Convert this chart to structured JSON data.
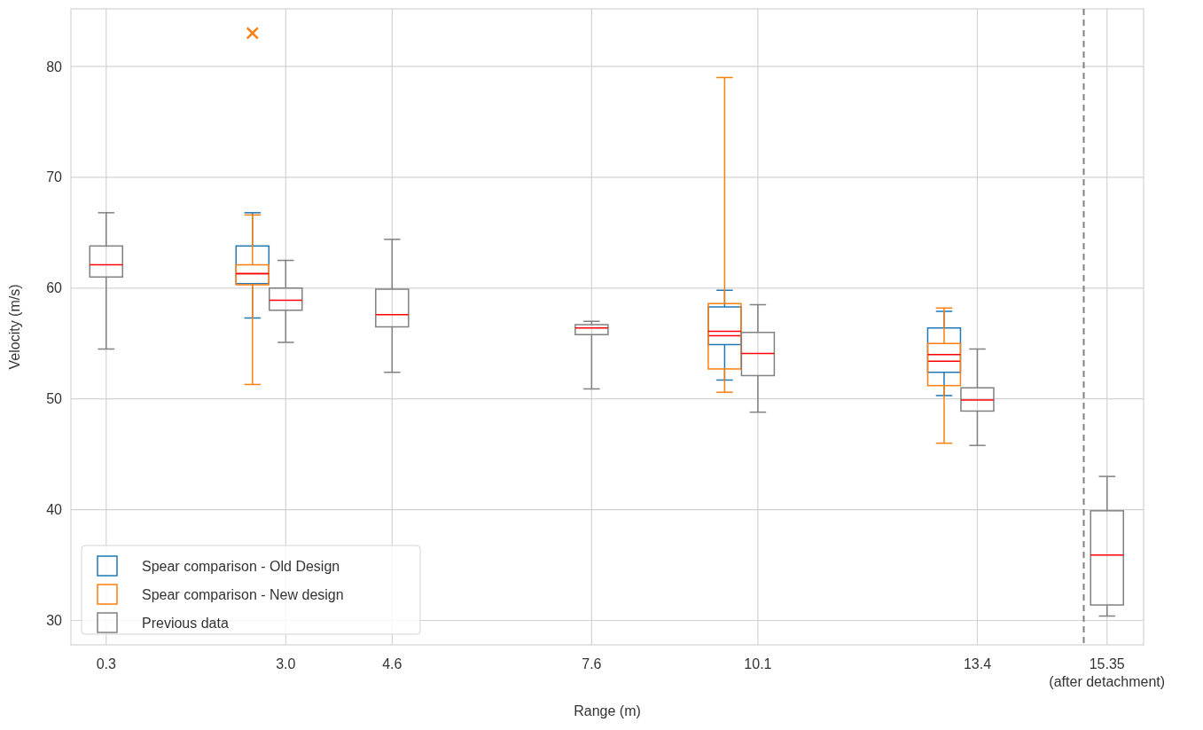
{
  "chart_data": {
    "type": "box",
    "xlabel": "Range (m)",
    "ylabel": "Velocity (m/s)",
    "xlim": [
      -0.23,
      15.9
    ],
    "ylim": [
      27.8,
      85.2
    ],
    "xticks": [
      0.3,
      {
        "value": 3.0,
        "label": "3.0"
      },
      4.6,
      7.6,
      10.1,
      13.4,
      {
        "value": 15.35,
        "label": "15.35\n(after detachment)"
      }
    ],
    "yticks": [
      30,
      40,
      50,
      60,
      70,
      80
    ],
    "grid": true,
    "legend": "bottom left",
    "marker": "cross",
    "ref_lines": [
      {
        "axis": "x",
        "value": 15.0,
        "color": "#808080",
        "line_style": "dashed"
      }
    ],
    "series": [
      {
        "name": "Spear comparison - Old Design",
        "color": "#1f77b4",
        "x": [
          2.5,
          9.6,
          12.9
        ],
        "boxes": [
          {
            "low": 57.3,
            "q1": 60.4,
            "median": 61.3,
            "q3": 63.8,
            "high": 66.8
          },
          {
            "low": 51.7,
            "q1": 54.9,
            "median": 55.7,
            "q3": 58.3,
            "high": 59.8
          },
          {
            "low": 50.3,
            "q1": 52.4,
            "median": 53.4,
            "q3": 56.4,
            "high": 57.9
          }
        ]
      },
      {
        "name": "Spear comparison - New design",
        "color": "#ff7f0e",
        "x": [
          2.5,
          9.6,
          12.9
        ],
        "boxes": [
          {
            "low": 51.3,
            "q1": 60.3,
            "median": 61.3,
            "q3": 62.1,
            "high": 66.6,
            "outliers": [
              83.0
            ]
          },
          {
            "low": 50.6,
            "q1": 52.7,
            "median": 56.1,
            "q3": 58.6,
            "high": 79.0
          },
          {
            "low": 46.0,
            "q1": 51.2,
            "median": 54.0,
            "q3": 55.0,
            "high": 58.2
          }
        ]
      },
      {
        "name": "Previous data",
        "color": "#808080",
        "x": [
          0.3,
          3.0,
          4.6,
          7.6,
          10.1,
          13.4,
          15.35
        ],
        "boxes": [
          {
            "low": 54.5,
            "q1": 61.0,
            "median": 62.1,
            "q3": 63.8,
            "high": 66.8
          },
          {
            "low": 55.1,
            "q1": 58.0,
            "median": 58.9,
            "q3": 60.0,
            "high": 62.5
          },
          {
            "low": 52.4,
            "q1": 56.5,
            "median": 57.6,
            "q3": 59.9,
            "high": 64.4
          },
          {
            "low": 50.9,
            "q1": 55.8,
            "median": 56.4,
            "q3": 56.7,
            "high": 57.0
          },
          {
            "low": 48.8,
            "q1": 52.1,
            "median": 54.1,
            "q3": 56.0,
            "high": 58.5
          },
          {
            "low": 45.8,
            "q1": 48.9,
            "median": 49.9,
            "q3": 51.0,
            "high": 54.5
          },
          {
            "low": 30.4,
            "q1": 31.4,
            "median": 35.9,
            "q3": 39.9,
            "high": 43.0
          }
        ]
      }
    ]
  }
}
